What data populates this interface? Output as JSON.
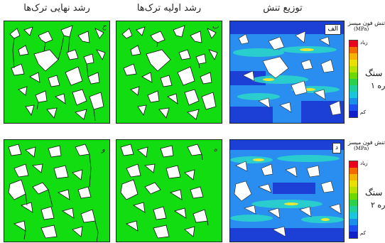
{
  "columns": {
    "final_growth": "رشد نهایی ترک‌ها",
    "initial_growth": "رشد اولیه ترک‌ها",
    "stress_distribution": "توزیع تنش"
  },
  "panel_labels": {
    "top_stress": "الف",
    "top_initial": "ب",
    "top_final": "ج",
    "bottom_stress": "د",
    "bottom_initial": "ه",
    "bottom_final": "و"
  },
  "legend": {
    "title": "تنش فون میسز",
    "unit": "(MPa)",
    "high": "زیاد",
    "low": "کم",
    "colors": [
      "#e8001c",
      "#f26a00",
      "#f5b400",
      "#e8e000",
      "#b8e000",
      "#6ed800",
      "#2bd14a",
      "#1fcf9c",
      "#19c6dc",
      "#1a8fea",
      "#1d4ff0",
      "#1020c8"
    ]
  },
  "rows": {
    "row1_rock_label": "سنگ",
    "row1_rock_number": "ره ۱",
    "row2_rock_label": "سنگ",
    "row2_rock_number": "ره ۲"
  },
  "colors": {
    "green_field": "#11dd11",
    "stress_base": "#2a8ef0",
    "stress_low": "#1c3fd6",
    "stress_mid": "#2bd8c8",
    "stress_high": "#e9e83a"
  }
}
